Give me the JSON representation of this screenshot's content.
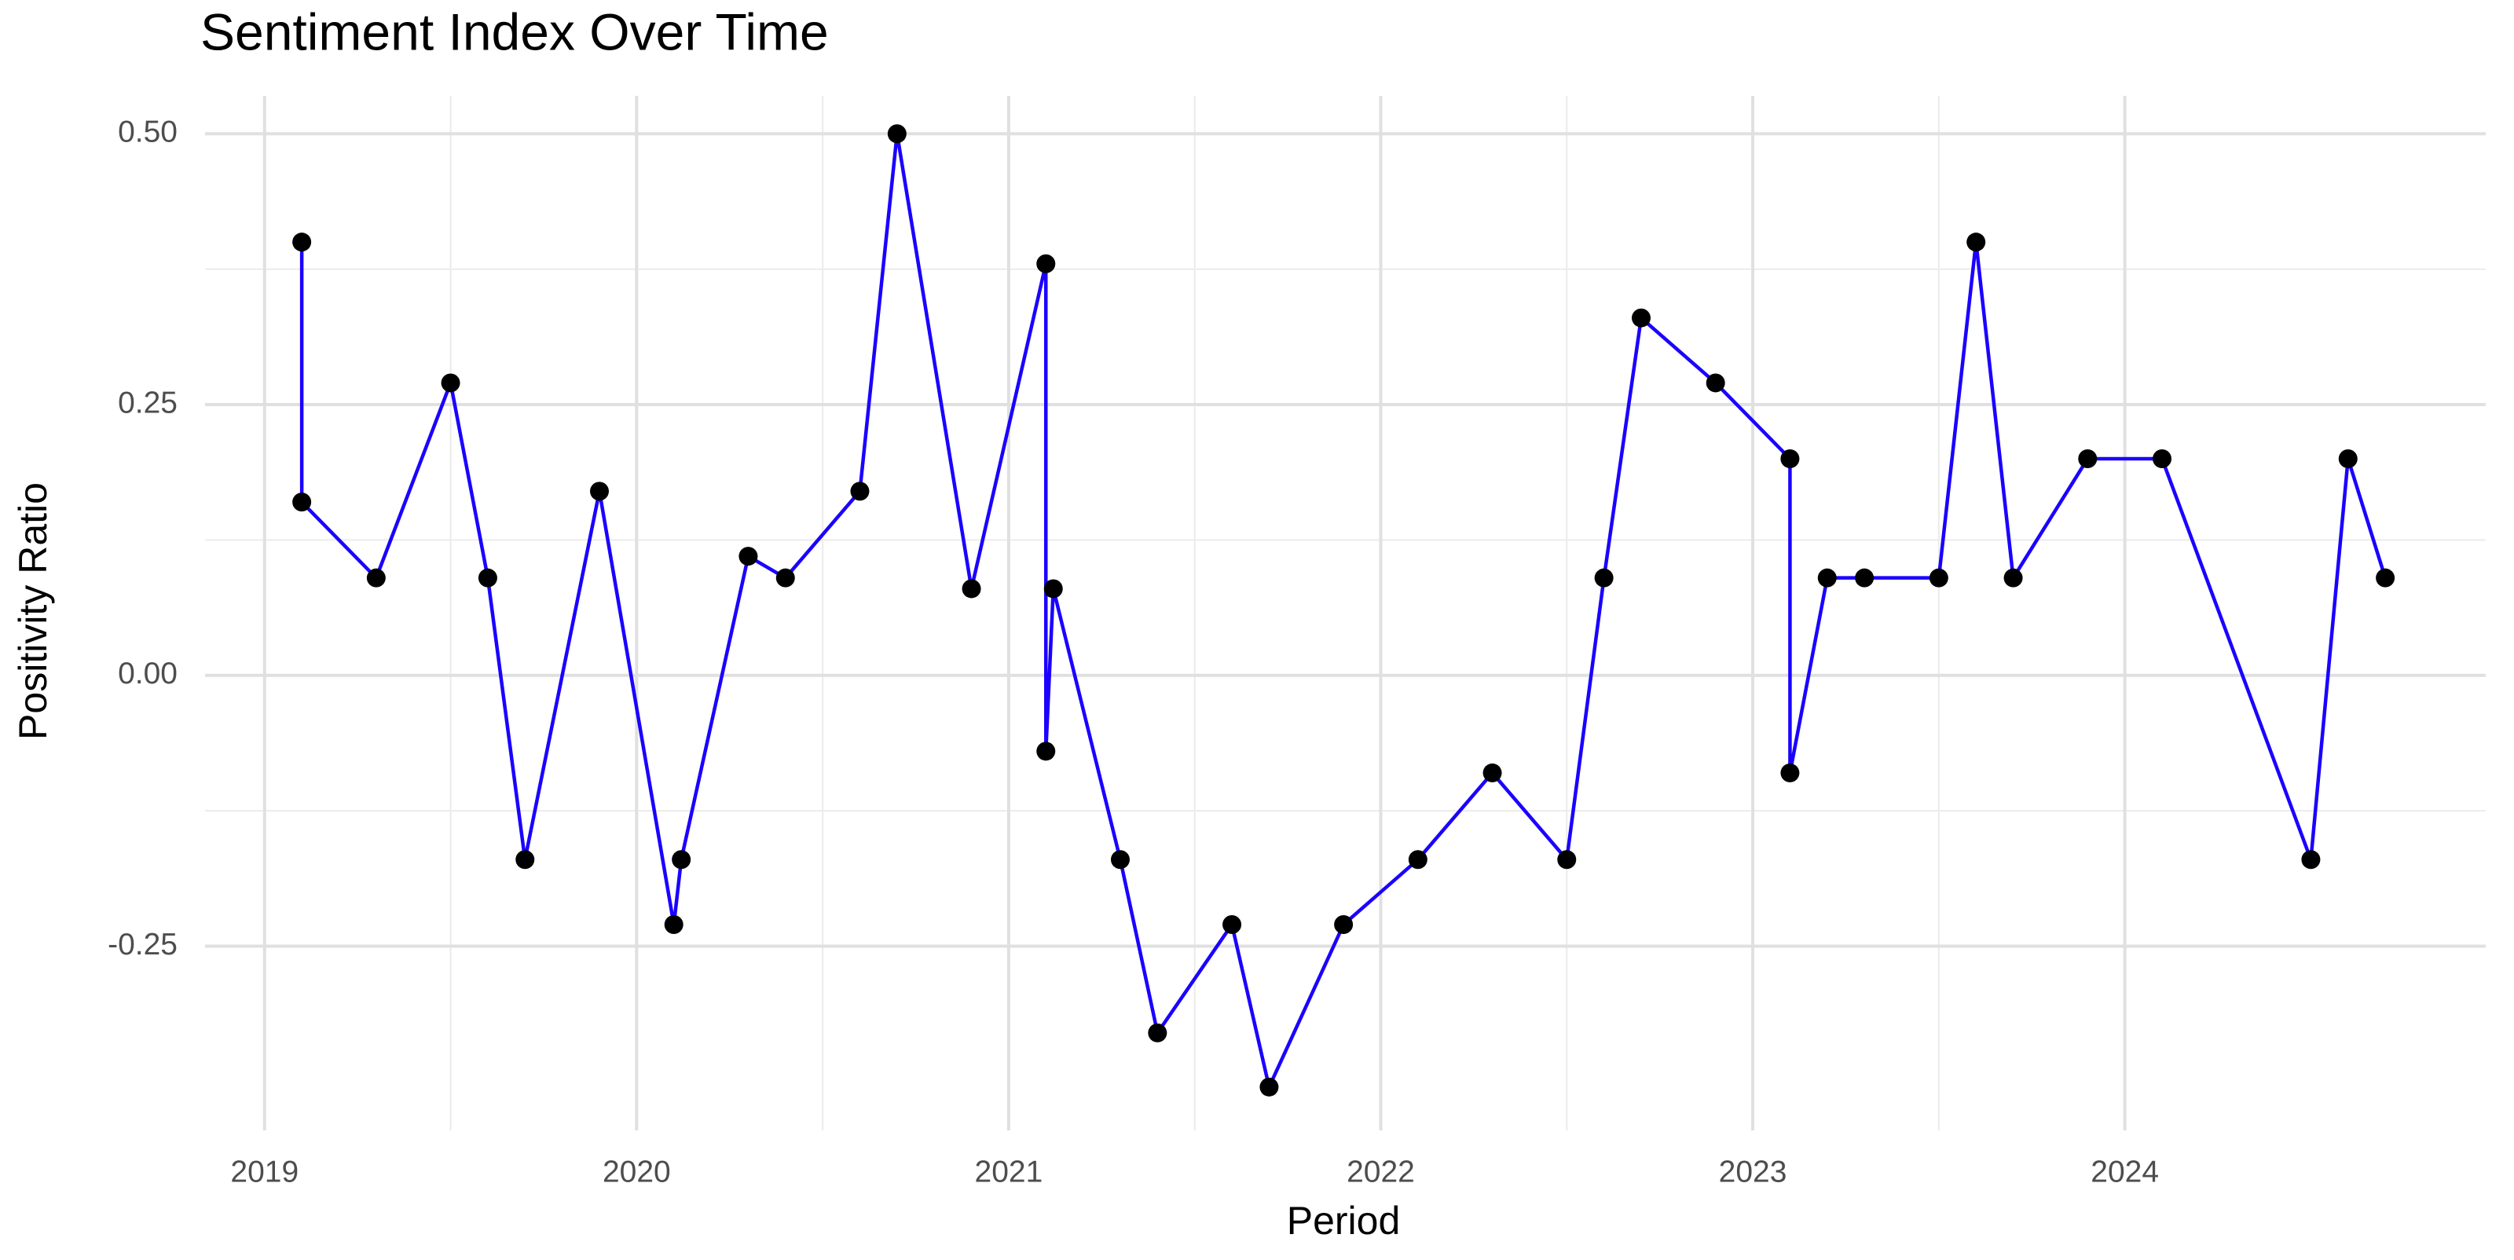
{
  "chart_data": {
    "type": "line",
    "title": "Sentiment Index Over Time",
    "x_label": "Period",
    "y_label": "Positivity Ratio",
    "x": [
      2019.1,
      2019.1,
      2019.3,
      2019.5,
      2019.6,
      2019.7,
      2019.9,
      2020.1,
      2020.12,
      2020.3,
      2020.4,
      2020.6,
      2020.7,
      2020.9,
      2021.1,
      2021.1,
      2021.12,
      2021.3,
      2021.4,
      2021.6,
      2021.7,
      2021.9,
      2022.1,
      2022.3,
      2022.5,
      2022.6,
      2022.7,
      2022.9,
      2023.1,
      2023.1,
      2023.2,
      2023.3,
      2023.5,
      2023.6,
      2023.7,
      2023.9,
      2024.1,
      2024.5,
      2024.6,
      2024.7
    ],
    "series": [
      {
        "color": "#1a00ff",
        "point_color": "#000000",
        "values": [
          0.4,
          0.16,
          0.09,
          0.27,
          0.09,
          -0.17,
          0.17,
          -0.23,
          -0.17,
          0.11,
          0.09,
          0.17,
          0.5,
          0.08,
          0.38,
          -0.07,
          0.08,
          -0.17,
          -0.33,
          -0.23,
          -0.38,
          -0.23,
          -0.17,
          -0.09,
          -0.17,
          0.09,
          0.33,
          0.27,
          0.2,
          -0.09,
          0.09,
          0.09,
          0.09,
          0.4,
          0.09,
          0.2,
          0.2,
          -0.17,
          0.2,
          0.09
        ]
      }
    ],
    "xlim": [
      2018.84,
      2024.97
    ],
    "xticks": [
      2019,
      2020,
      2021,
      2022,
      2023,
      2024
    ],
    "ylim": [
      -0.42,
      0.535
    ],
    "yticks": [
      -0.25,
      {
        "value": 0,
        "label": "0.00"
      },
      0.25,
      {
        "value": 0.5,
        "label": "0.50"
      }
    ],
    "grid": true
  }
}
